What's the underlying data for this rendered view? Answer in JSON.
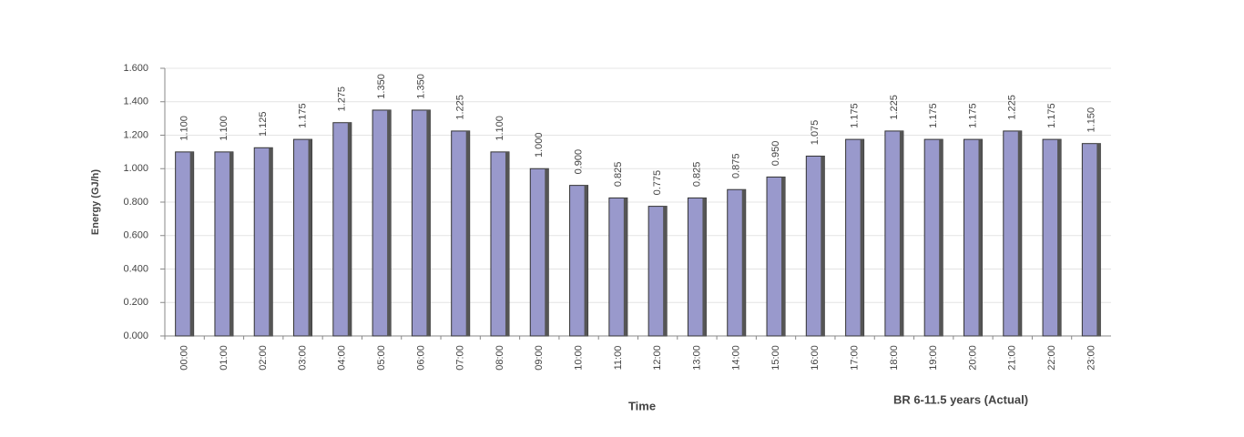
{
  "chart_data": {
    "type": "bar",
    "y_label": "Energy (GJ/h)",
    "x_label": "Time",
    "categories": [
      "00:00",
      "01:00",
      "02:00",
      "03:00",
      "04:00",
      "05:00",
      "06:00",
      "07:00",
      "08:00",
      "09:00",
      "10:00",
      "11:00",
      "12:00",
      "13:00",
      "14:00",
      "15:00",
      "16:00",
      "17:00",
      "18:00",
      "19:00",
      "20:00",
      "21:00",
      "22:00",
      "23:00"
    ],
    "series": [
      {
        "name": "BR 6-11.5 years (Actual)",
        "color": "#9999cc",
        "values": [
          1.1,
          1.1,
          1.125,
          1.175,
          1.275,
          1.35,
          1.35,
          1.225,
          1.1,
          1.0,
          0.9,
          0.825,
          0.775,
          0.825,
          0.875,
          0.95,
          1.075,
          1.175,
          1.225,
          1.175,
          1.175,
          1.225,
          1.175,
          1.15
        ],
        "value_labels": [
          "1.100",
          "1.100",
          "1.125",
          "1.175",
          "1.275",
          "1.350",
          "1.350",
          "1.225",
          "1.100",
          "1.000",
          "0.900",
          "0.825",
          "0.775",
          "0.825",
          "0.875",
          "0.950",
          "1.075",
          "1.175",
          "1.225",
          "1.175",
          "1.175",
          "1.225",
          "1.175",
          "1.150"
        ]
      }
    ],
    "ylim": [
      0,
      1.6
    ],
    "yticks": [
      {
        "value": 0,
        "label": "0.000"
      },
      {
        "value": 0.2,
        "label": "0.200"
      },
      {
        "value": 0.4,
        "label": "0.400"
      },
      {
        "value": 0.6,
        "label": "0.600"
      },
      {
        "value": 0.8,
        "label": "0.800"
      },
      {
        "value": 1.0,
        "label": "1.000"
      },
      {
        "value": 1.2,
        "label": "1.200"
      },
      {
        "value": 1.4,
        "label": "1.400"
      },
      {
        "value": 1.6,
        "label": "1.600"
      }
    ],
    "grid": true
  }
}
